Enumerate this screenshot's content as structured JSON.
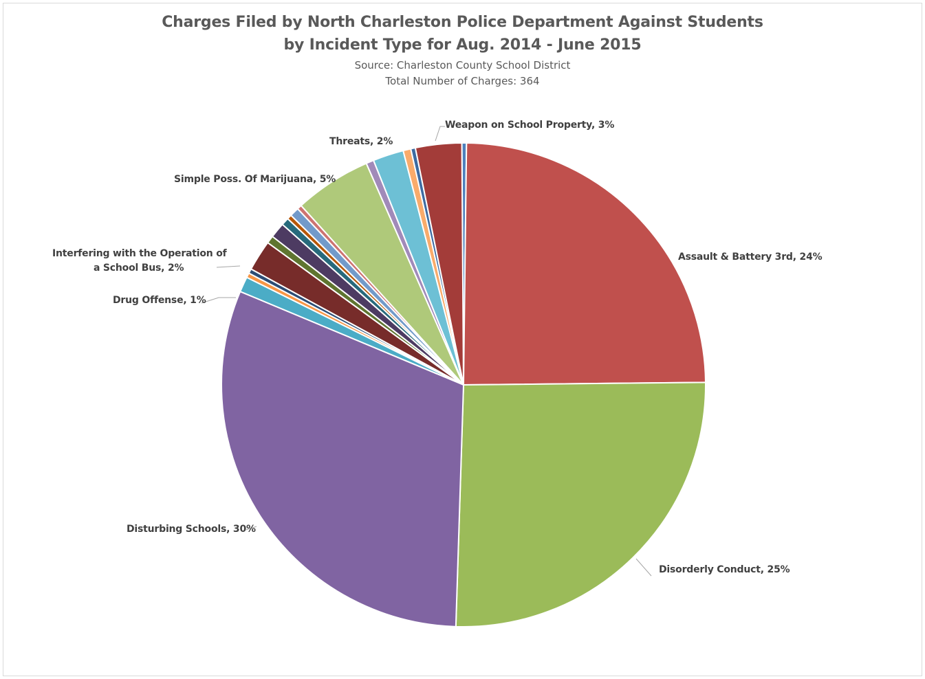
{
  "chart_data": {
    "type": "pie",
    "title": "Charges Filed by North Charleston Police Department Against Students",
    "title_line2": "by Incident Type for Aug. 2014 - June 2015",
    "subtitle": "Source: Charleston County School District",
    "subtitle2": "Total Number of Charges: 364",
    "slices": [
      {
        "category": "",
        "value": 0.3,
        "color": "#4f81bd"
      },
      {
        "category": "Assault & Battery 3rd",
        "value": 24,
        "color": "#c0504d"
      },
      {
        "category": "Disorderly Conduct",
        "value": 25,
        "color": "#9bbb59"
      },
      {
        "category": "Disturbing Schools",
        "value": 30,
        "color": "#8064a2"
      },
      {
        "category": "Drug Offense",
        "value": 1,
        "color": "#4bacc6"
      },
      {
        "category": "",
        "value": 0.3,
        "color": "#f79646"
      },
      {
        "category": "",
        "value": 0.3,
        "color": "#2c4d75"
      },
      {
        "category": "Interfering with the Operation of a School Bus",
        "value": 2,
        "color": "#772c2a"
      },
      {
        "category": "",
        "value": 0.5,
        "color": "#5f7530"
      },
      {
        "category": "",
        "value": 1,
        "color": "#4d3b62"
      },
      {
        "category": "",
        "value": 0.5,
        "color": "#276a7c"
      },
      {
        "category": "",
        "value": 0.3,
        "color": "#b65708"
      },
      {
        "category": "",
        "value": 0.6,
        "color": "#729aca"
      },
      {
        "category": "",
        "value": 0.3,
        "color": "#cd7371"
      },
      {
        "category": "Simple Poss. Of Marijuana",
        "value": 5,
        "color": "#afc97a"
      },
      {
        "category": "",
        "value": 0.5,
        "color": "#a18ab9"
      },
      {
        "category": "Threats",
        "value": 2,
        "color": "#6dc0d5"
      },
      {
        "category": "",
        "value": 0.5,
        "color": "#f9ab6b"
      },
      {
        "category": "",
        "value": 0.3,
        "color": "#3d6ba1"
      },
      {
        "category": "Weapon on School Property",
        "value": 3,
        "color": "#a33c39"
      }
    ],
    "data_labels": [
      {
        "text": "Weapon on School Property, 3%"
      },
      {
        "text": "Threats, 2%"
      },
      {
        "text": "Simple Poss. Of Marijuana, 5%"
      },
      {
        "text": "Interfering with the Operation of"
      },
      {
        "text": "a School Bus, 2%"
      },
      {
        "text": "Drug Offense, 1%"
      },
      {
        "text": "Disturbing Schools, 30%"
      },
      {
        "text": "Disorderly Conduct, 25%"
      },
      {
        "text": "Assault & Battery 3rd, 24%"
      }
    ],
    "legend": "none",
    "leader_line_color": "#a6a6a6"
  }
}
